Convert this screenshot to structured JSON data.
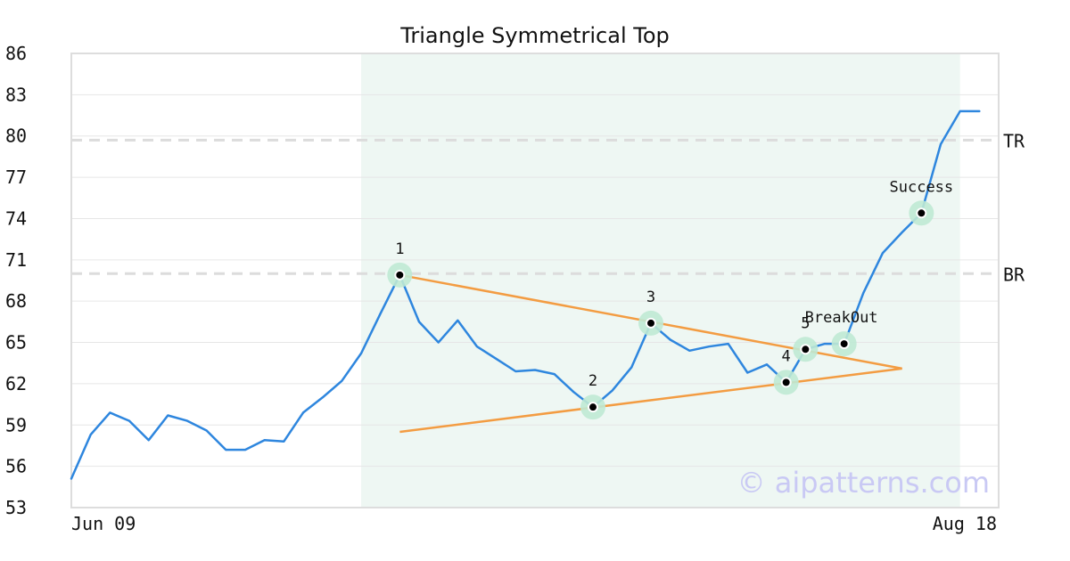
{
  "chart_data": {
    "type": "line",
    "title": "Triangle Symmetrical Top",
    "watermark": "© aipatterns.com",
    "x_labels": [
      "Jun 09",
      "Aug 18"
    ],
    "ylim": [
      53,
      86
    ],
    "yticks": [
      53,
      56,
      59,
      62,
      65,
      68,
      71,
      74,
      77,
      80,
      83,
      86
    ],
    "grid": true,
    "series": [
      {
        "color": "#2e86de",
        "values": [
          55.1,
          58.3,
          59.9,
          59.3,
          57.9,
          59.7,
          59.3,
          58.6,
          57.2,
          57.2,
          57.9,
          57.8,
          59.9,
          61.0,
          62.2,
          64.2,
          67.1,
          69.9,
          66.5,
          65.0,
          66.6,
          64.7,
          63.8,
          62.9,
          63.0,
          62.7,
          61.4,
          60.3,
          61.5,
          63.2,
          66.4,
          65.2,
          64.4,
          64.7,
          64.9,
          62.8,
          63.4,
          62.1,
          64.5,
          64.9,
          64.9,
          68.6,
          71.5,
          73.0,
          74.4,
          79.4,
          81.8,
          81.8
        ]
      }
    ],
    "shaded_region": {
      "from_index": 15,
      "to_index": 46,
      "color": "#eef7f3"
    },
    "levels": [
      {
        "label": "TR",
        "value": 79.7
      },
      {
        "label": "BR",
        "value": 70.0
      }
    ],
    "trendlines": [
      {
        "color": "#f39c42",
        "from": {
          "index": 17,
          "value": 69.9
        },
        "to": {
          "index": 43,
          "value": 63.1
        }
      },
      {
        "color": "#f39c42",
        "from": {
          "index": 17,
          "value": 58.5
        },
        "to": {
          "index": 43,
          "value": 63.1
        }
      }
    ],
    "points": [
      {
        "label": "1",
        "index": 17,
        "value": 69.9
      },
      {
        "label": "2",
        "index": 27,
        "value": 60.3
      },
      {
        "label": "3",
        "index": 30,
        "value": 66.4
      },
      {
        "label": "4",
        "index": 37,
        "value": 62.1
      },
      {
        "label": "5",
        "index": 38,
        "value": 64.5
      },
      {
        "label": "BreakOut",
        "index": 40,
        "value": 64.9
      },
      {
        "label": "Success",
        "index": 44,
        "value": 74.4
      }
    ]
  }
}
